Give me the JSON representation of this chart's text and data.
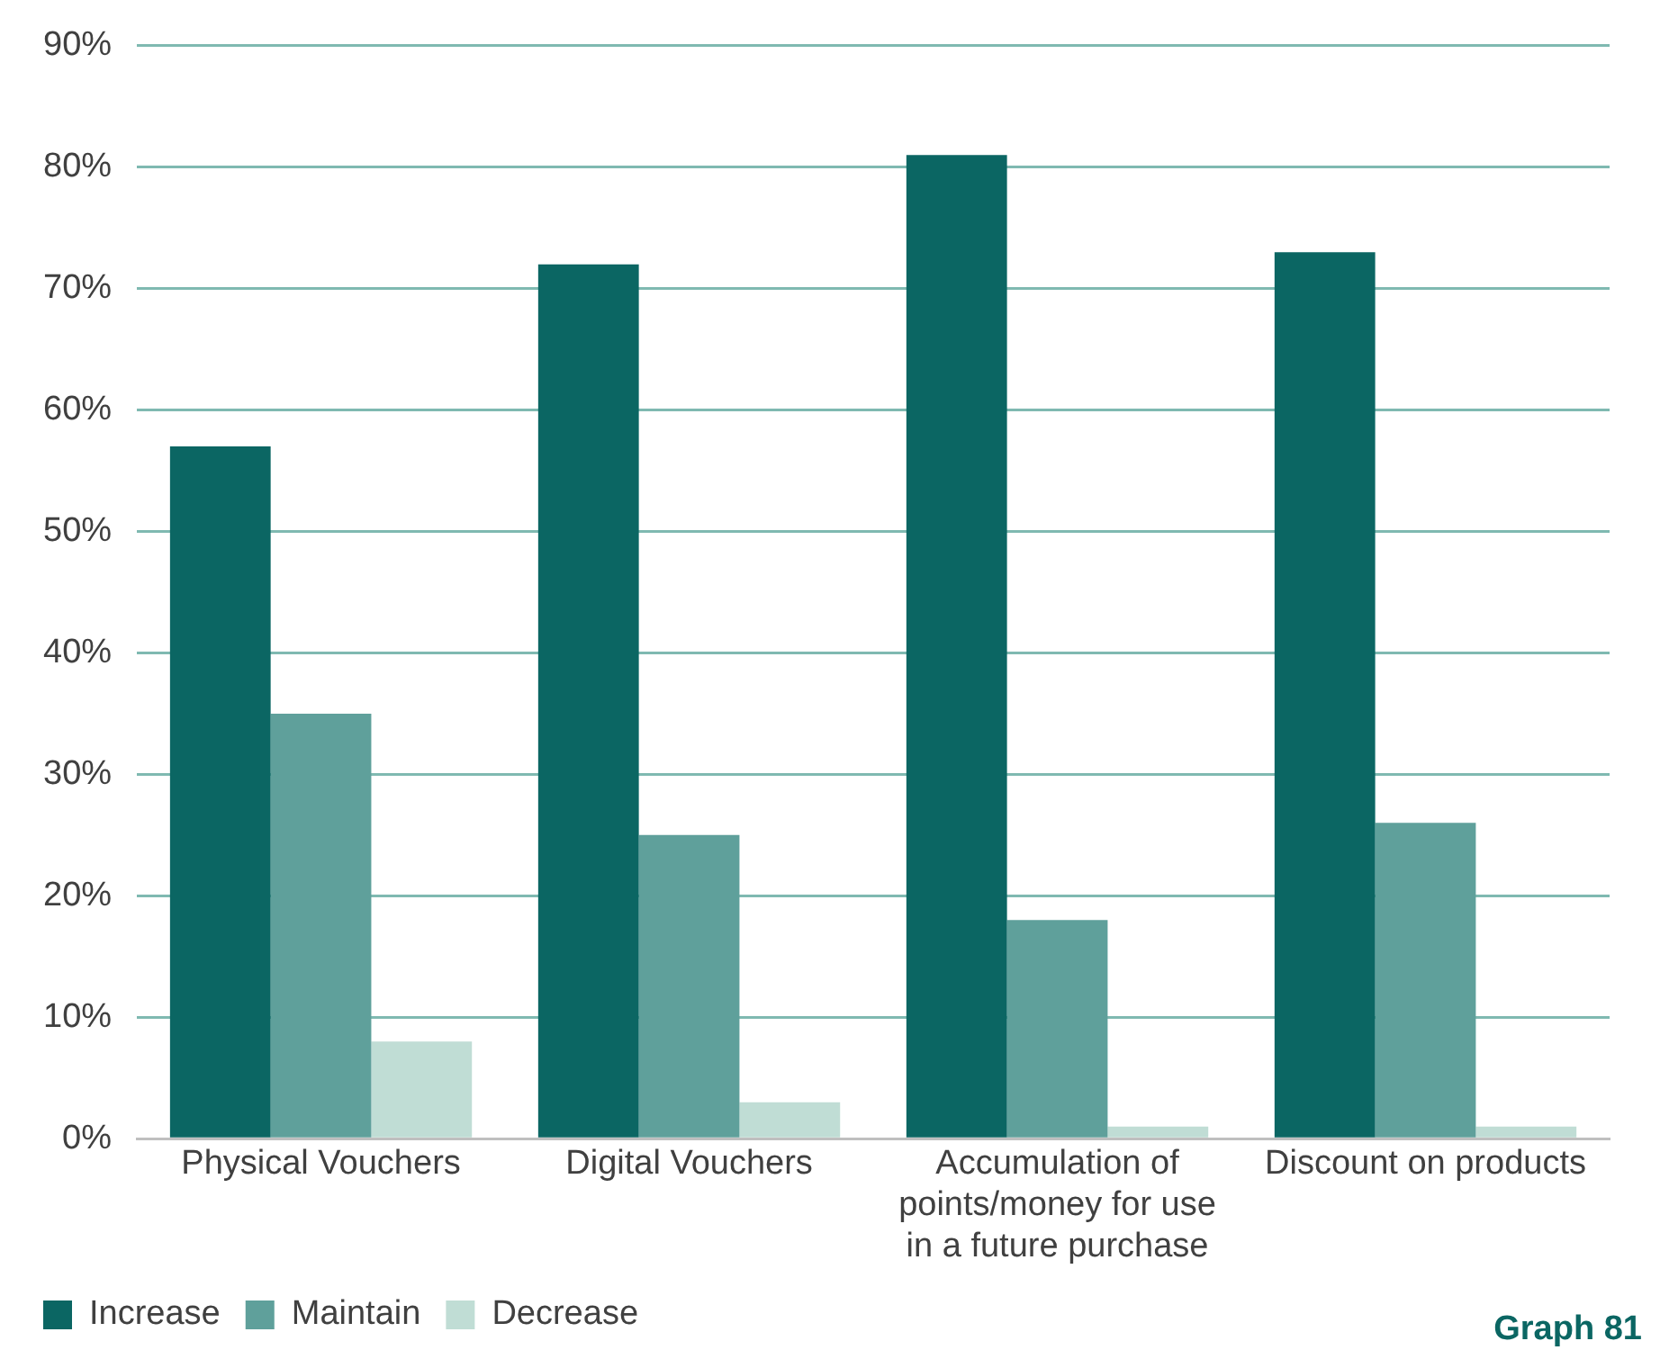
{
  "chart_data": {
    "type": "bar",
    "categories": [
      "Physical Vouchers",
      "Digital Vouchers",
      "Accumulation of points/money for use in a future purchase",
      "Discount on products"
    ],
    "series": [
      {
        "name": "Increase",
        "color": "#0b6663",
        "values": [
          57,
          72,
          81,
          73
        ]
      },
      {
        "name": "Maintain",
        "color": "#5fa09b",
        "values": [
          35,
          25,
          18,
          26
        ]
      },
      {
        "name": "Decrease",
        "color": "#c0ddd5",
        "values": [
          8,
          3,
          1,
          1
        ]
      }
    ],
    "ylim": [
      0,
      90
    ],
    "yticks": [
      {
        "value": 0,
        "label": "0%"
      },
      {
        "value": 10,
        "label": "10%"
      },
      {
        "value": 20,
        "label": "20%"
      },
      {
        "value": 30,
        "label": "30%"
      },
      {
        "value": 40,
        "label": "40%"
      },
      {
        "value": 50,
        "label": "50%"
      },
      {
        "value": 60,
        "label": "60%"
      },
      {
        "value": 70,
        "label": "70%"
      },
      {
        "value": 80,
        "label": "80%"
      },
      {
        "value": 90,
        "label": "90%"
      }
    ],
    "grid": "y",
    "legend": "bottom left",
    "annotations": [
      "Graph 81"
    ]
  }
}
